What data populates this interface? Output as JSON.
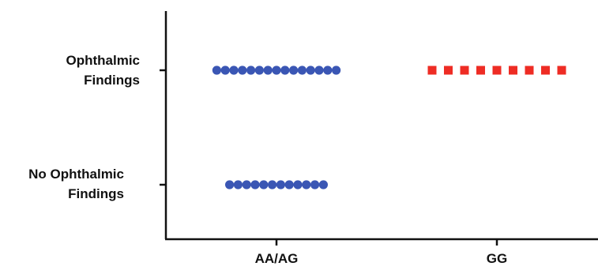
{
  "chart_data": {
    "type": "scatter",
    "title": "",
    "xlabel": "",
    "ylabel": "",
    "x_categories": [
      "AA/AG",
      "GG"
    ],
    "y_categories": [
      {
        "label_lines": [
          "Ophthalmic",
          "Findings"
        ]
      },
      {
        "label_lines": [
          "No Ophthalmic",
          "Findings"
        ]
      }
    ],
    "series": [
      {
        "group": "AA/AG",
        "marker": "circle",
        "color": "#3a56b4",
        "points": [
          {
            "y": "Ophthalmic Findings",
            "count": 15
          },
          {
            "y": "No Ophthalmic Findings",
            "count": 12
          }
        ]
      },
      {
        "group": "GG",
        "marker": "square",
        "color": "#ee2c24",
        "points": [
          {
            "y": "Ophthalmic Findings",
            "count": 9
          }
        ]
      }
    ],
    "grid": false,
    "legend": "none"
  }
}
